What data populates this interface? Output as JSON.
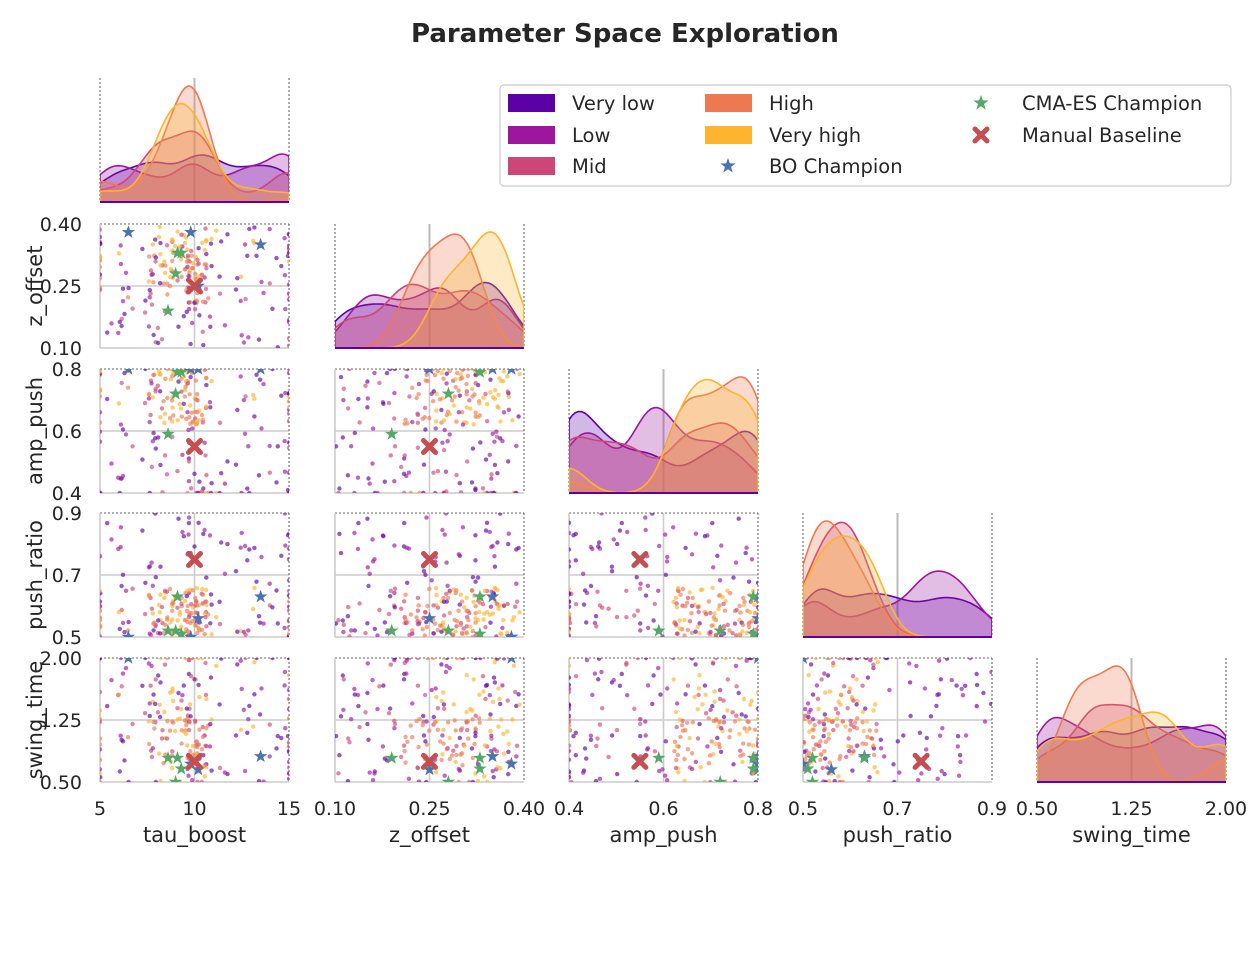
{
  "figure": {
    "title": "Parameter Space Exploration"
  },
  "chart_data": {
    "type": "pairplot",
    "params": [
      {
        "name": "tau_boost",
        "range": [
          5,
          15
        ],
        "ticks": [
          "5",
          "10",
          "15"
        ],
        "tick_values": [
          5,
          10,
          15
        ]
      },
      {
        "name": "z_offset",
        "range": [
          0.1,
          0.4
        ],
        "ticks": [
          "0.10",
          "0.25",
          "0.40"
        ],
        "tick_values": [
          0.1,
          0.25,
          0.4
        ]
      },
      {
        "name": "amp_push",
        "range": [
          0.4,
          0.8
        ],
        "ticks": [
          "0.4",
          "0.6",
          "0.8"
        ],
        "tick_values": [
          0.4,
          0.6,
          0.8
        ]
      },
      {
        "name": "push_ratio",
        "range": [
          0.5,
          0.9
        ],
        "ticks": [
          "0.5",
          "0.7",
          "0.9"
        ],
        "tick_values": [
          0.5,
          0.7,
          0.9
        ]
      },
      {
        "name": "swing_time",
        "range": [
          0.5,
          2.0
        ],
        "ticks": [
          "0.50",
          "1.25",
          "2.00"
        ],
        "tick_values": [
          0.5,
          1.25,
          2.0
        ]
      }
    ],
    "groups": [
      {
        "name": "Very low",
        "color": "#5c01a6"
      },
      {
        "name": "Low",
        "color": "#9c179e"
      },
      {
        "name": "Mid",
        "color": "#cc4778"
      },
      {
        "name": "High",
        "color": "#ed7953"
      },
      {
        "name": "Very high",
        "color": "#fdb42f"
      }
    ],
    "markers": [
      {
        "name": "BO Champion",
        "shape": "star",
        "color": "#4c72b0"
      },
      {
        "name": "CMA-ES Champion",
        "shape": "star",
        "color": "#55a868"
      },
      {
        "name": "Manual Baseline",
        "shape": "x",
        "color": "#c44e52"
      }
    ],
    "manual_baseline": [
      10,
      0.25,
      0.55,
      0.75,
      0.75
    ],
    "bo_champions": [
      [
        6.5,
        0.38,
        0.8,
        0.5,
        2.0
      ],
      [
        13.5,
        0.35,
        0.8,
        0.63,
        0.81
      ],
      [
        10.2,
        0.25,
        0.8,
        0.56,
        0.65
      ],
      [
        9.8,
        0.38,
        0.8,
        0.5,
        0.72
      ]
    ],
    "cma_champions": [
      [
        9.1,
        0.33,
        0.79,
        0.63,
        0.79
      ],
      [
        9.0,
        0.28,
        0.72,
        0.52,
        0.5
      ],
      [
        8.6,
        0.19,
        0.59,
        0.52,
        0.79
      ],
      [
        9.3,
        0.33,
        0.79,
        0.51,
        0.66
      ]
    ],
    "kde_reference_lines": "parameter midpoints",
    "legend_position": "top-right",
    "grid": true
  }
}
